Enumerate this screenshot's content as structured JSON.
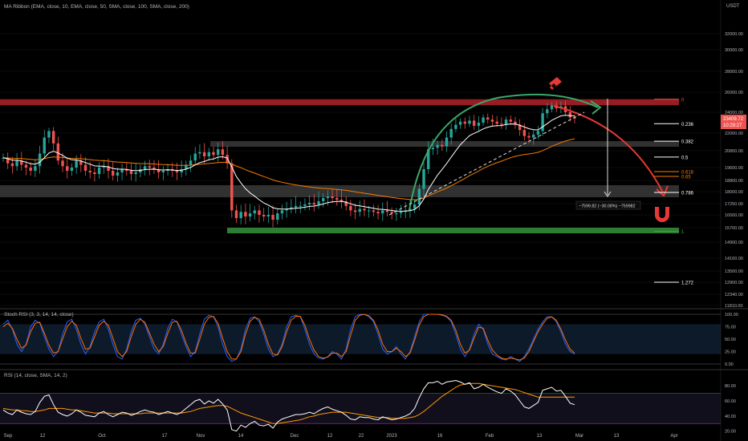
{
  "indicators": {
    "ma_ribbon": "MA Ribbon (EMA, close, 10, EMA, close, 50, SMA, close, 100, SMA, close, 200)",
    "stoch": "Stoch RSI (3, 3, 14, 14, close)",
    "rsi": "RSI (14, close, SMA, 14, 2)"
  },
  "currency": "USDT",
  "price_tag": {
    "price": "23409.72",
    "countdown": "10:29:27"
  },
  "measure_label": "−7599.82 (−30.08%) −759982",
  "colors": {
    "up": "#26a69a",
    "down": "#ef5350",
    "ema10": "#ffffff",
    "ema50": "#f57c00",
    "resistance": "#b2222a",
    "support": "#2e7d32",
    "stoch_k": "#2962ff",
    "stoch_d": "#ff6d00",
    "rsi": "#ffffff",
    "rsi_ma": "#ff9800"
  },
  "chart_data": [
    {
      "type": "candlestick",
      "title": "",
      "price_axis_ticks": [
        32000,
        30000,
        28000,
        26000,
        24000,
        22000,
        20800,
        19600,
        18800,
        18000,
        17250,
        16500,
        15700,
        14900,
        14100,
        13500,
        12900,
        12340,
        11810
      ],
      "x_ticks": [
        "Sep",
        "12",
        "Oct",
        "17",
        "Nov",
        "14",
        "Dec",
        "12",
        "22",
        "2023",
        "16",
        "Feb",
        "13",
        "Mar",
        "13",
        "Apr"
      ],
      "fib_levels": [
        {
          "label": "0",
          "price": 25300
        },
        {
          "label": "0.236",
          "price": 22900
        },
        {
          "label": "0.382",
          "price": 21450
        },
        {
          "label": "0.5",
          "price": 20350
        },
        {
          "label": "0.618",
          "price": 19350
        },
        {
          "label": "0.65",
          "price": 19050
        },
        {
          "label": "0.786",
          "price": 17950
        },
        {
          "label": "1",
          "price": 15500
        },
        {
          "label": "1.272",
          "price": 12900
        }
      ],
      "resistance_zone": [
        24700,
        25300
      ],
      "support_line": 15500,
      "series": [
        {
          "name": "Close",
          "values": [
            20300,
            19900,
            19700,
            20100,
            19800,
            19600,
            19400,
            19700,
            20600,
            21700,
            22200,
            21300,
            20100,
            19700,
            19400,
            19600,
            20100,
            19800,
            19400,
            19300,
            19200,
            19600,
            19700,
            19400,
            19100,
            19300,
            19500,
            19400,
            19200,
            19300,
            19500,
            19700,
            19600,
            19500,
            19300,
            19400,
            19500,
            19400,
            19300,
            19500,
            19800,
            20100,
            20600,
            20700,
            20400,
            20700,
            20500,
            20900,
            20500,
            19900,
            16800,
            16300,
            16700,
            16400,
            16600,
            16800,
            16500,
            16400,
            16500,
            16200,
            16600,
            16800,
            16900,
            17000,
            17100,
            17100,
            17200,
            17300,
            17200,
            17400,
            17600,
            17700,
            17600,
            17500,
            17400,
            17100,
            16800,
            16700,
            16900,
            16800,
            16800,
            16700,
            16600,
            16800,
            16700,
            16600,
            16600,
            16700,
            16800,
            16900,
            17200,
            18200,
            19500,
            20900,
            21000,
            21200,
            21100,
            21700,
            22400,
            22800,
            23100,
            22900,
            23200,
            22700,
            23000,
            23500,
            23300,
            23100,
            22900,
            22800,
            23300,
            23100,
            22800,
            22300,
            21800,
            21700,
            21900,
            22200,
            23900,
            24300,
            24700,
            24400,
            24600,
            24000,
            23500,
            23400
          ]
        }
      ],
      "ylim": [
        11500,
        34000
      ]
    },
    {
      "type": "line",
      "title": "Stoch RSI",
      "ylim": [
        0,
        100
      ],
      "y_ticks": [
        100.0,
        75.0,
        50.0,
        25.0,
        0.0
      ],
      "series": [
        {
          "name": "K",
          "values": [
            80,
            88,
            70,
            40,
            25,
            40,
            75,
            88,
            82,
            55,
            30,
            15,
            25,
            60,
            85,
            90,
            70,
            40,
            20,
            35,
            65,
            85,
            90,
            70,
            40,
            15,
            10,
            30,
            65,
            88,
            92,
            80,
            55,
            30,
            20,
            40,
            72,
            90,
            85,
            60,
            35,
            15,
            25,
            60,
            90,
            98,
            95,
            75,
            40,
            15,
            5,
            10,
            30,
            70,
            92,
            95,
            85,
            60,
            30,
            15,
            20,
            40,
            75,
            95,
            98,
            95,
            70,
            40,
            20,
            12,
            10,
            15,
            25,
            20,
            10,
            30,
            70,
            95,
            100,
            100,
            95,
            85,
            60,
            30,
            20,
            25,
            35,
            20,
            10,
            25,
            55,
            85,
            100,
            100,
            100,
            100,
            98,
            95,
            85,
            60,
            30,
            15,
            30,
            60,
            80,
            70,
            40,
            20,
            15,
            10,
            8,
            15,
            10,
            5,
            15,
            30,
            50,
            70,
            85,
            95,
            95,
            85,
            65,
            40,
            25,
            20
          ]
        },
        {
          "name": "D",
          "values": [
            75,
            82,
            72,
            50,
            32,
            38,
            65,
            82,
            84,
            62,
            38,
            22,
            25,
            50,
            75,
            86,
            78,
            52,
            30,
            32,
            55,
            78,
            86,
            78,
            52,
            25,
            15,
            25,
            55,
            80,
            90,
            84,
            62,
            40,
            25,
            35,
            62,
            84,
            86,
            68,
            42,
            22,
            22,
            50,
            80,
            94,
            96,
            82,
            52,
            25,
            10,
            10,
            25,
            60,
            86,
            94,
            90,
            68,
            40,
            20,
            18,
            35,
            65,
            88,
            96,
            96,
            78,
            50,
            28,
            15,
            12,
            14,
            22,
            22,
            15,
            25,
            58,
            88,
            98,
            100,
            97,
            88,
            68,
            40,
            25,
            25,
            32,
            25,
            15,
            22,
            48,
            78,
            95,
            100,
            100,
            100,
            99,
            96,
            88,
            68,
            40,
            22,
            28,
            52,
            74,
            72,
            48,
            28,
            18,
            12,
            10,
            12,
            10,
            8,
            12,
            25,
            45,
            65,
            80,
            92,
            95,
            88,
            70,
            48,
            30,
            22
          ]
        }
      ]
    },
    {
      "type": "line",
      "title": "RSI",
      "ylim": [
        25,
        95
      ],
      "y_ticks": [
        80.0,
        60.0,
        40.0,
        20.0
      ],
      "series": [
        {
          "name": "RSI",
          "values": [
            48,
            44,
            42,
            48,
            45,
            43,
            42,
            46,
            58,
            66,
            68,
            55,
            45,
            42,
            40,
            43,
            48,
            45,
            41,
            40,
            39,
            44,
            46,
            42,
            39,
            42,
            45,
            44,
            41,
            43,
            46,
            48,
            46,
            45,
            42,
            44,
            46,
            44,
            42,
            45,
            50,
            55,
            60,
            62,
            56,
            60,
            57,
            62,
            56,
            48,
            22,
            20,
            28,
            25,
            30,
            33,
            28,
            27,
            29,
            24,
            32,
            36,
            38,
            40,
            42,
            42,
            43,
            45,
            43,
            47,
            50,
            52,
            49,
            47,
            45,
            41,
            36,
            35,
            39,
            38,
            38,
            36,
            35,
            39,
            37,
            35,
            36,
            38,
            40,
            43,
            50,
            64,
            76,
            84,
            84,
            86,
            82,
            85,
            86,
            87,
            85,
            82,
            84,
            76,
            78,
            82,
            78,
            75,
            72,
            70,
            76,
            73,
            68,
            60,
            52,
            50,
            54,
            58,
            74,
            76,
            78,
            73,
            74,
            66,
            57,
            55
          ]
        },
        {
          "name": "RSI-based MA",
          "values": [
            50,
            49,
            48,
            48,
            47,
            47,
            46,
            46,
            47,
            48,
            50,
            50,
            50,
            50,
            49,
            48,
            48,
            47,
            46,
            45,
            44,
            44,
            44,
            44,
            43,
            43,
            43,
            43,
            43,
            43,
            43,
            44,
            44,
            44,
            44,
            44,
            44,
            44,
            44,
            44,
            45,
            46,
            48,
            50,
            51,
            52,
            53,
            54,
            54,
            53,
            50,
            47,
            44,
            42,
            40,
            38,
            36,
            34,
            32,
            30,
            30,
            31,
            32,
            33,
            34,
            35,
            37,
            39,
            40,
            42,
            43,
            44,
            45,
            45,
            45,
            45,
            44,
            43,
            42,
            41,
            40,
            39,
            38,
            38,
            38,
            37,
            37,
            37,
            37,
            38,
            39,
            42,
            46,
            51,
            56,
            61,
            66,
            70,
            74,
            78,
            81,
            82,
            83,
            83,
            83,
            82,
            81,
            80,
            79,
            78,
            77,
            76,
            75,
            73,
            71,
            69,
            67,
            65,
            65,
            65,
            65,
            65,
            65,
            65,
            65,
            65
          ]
        }
      ]
    }
  ]
}
